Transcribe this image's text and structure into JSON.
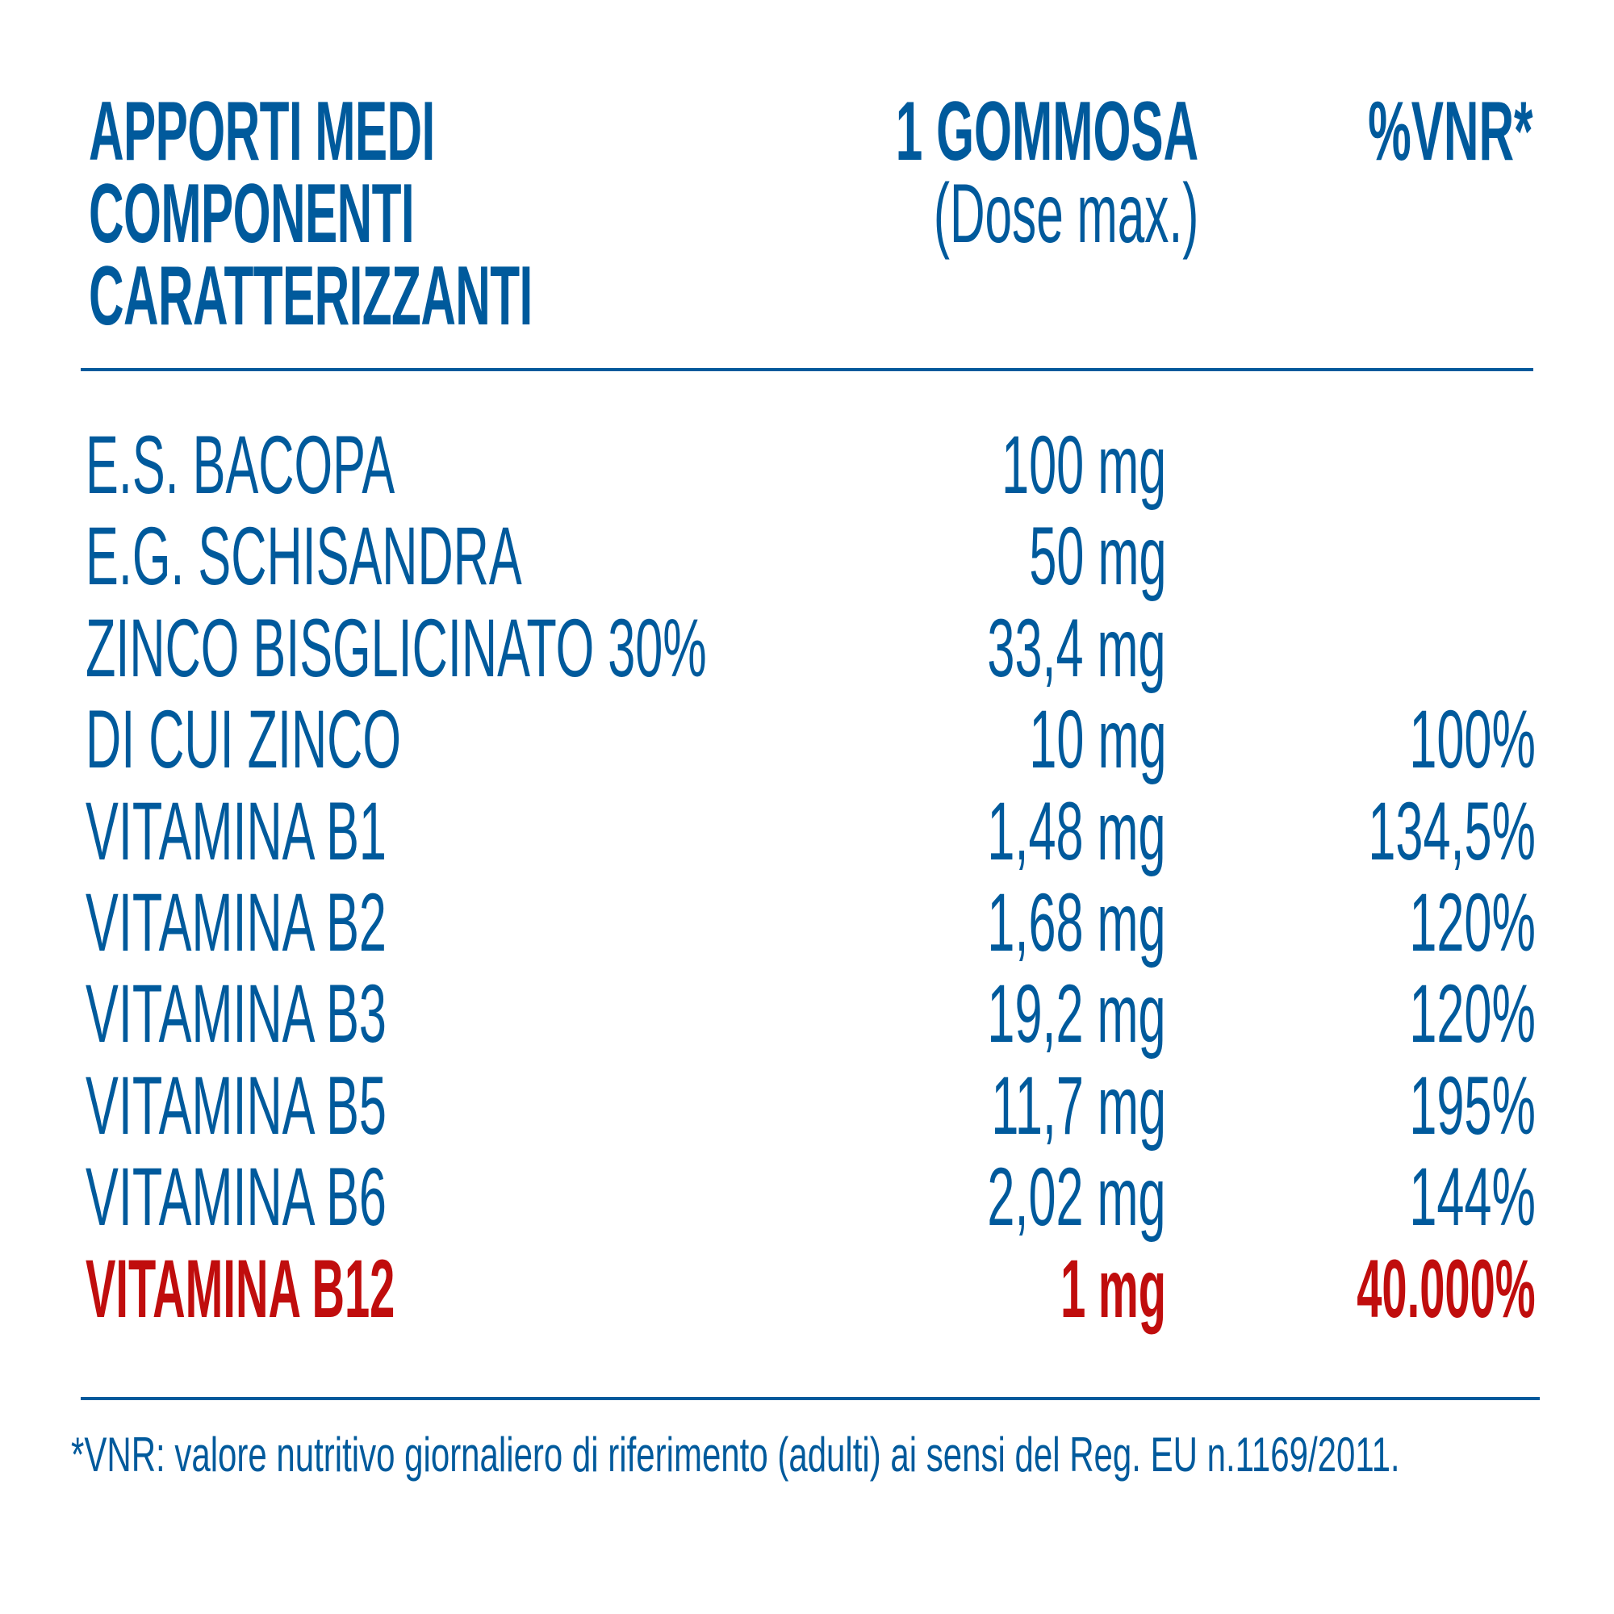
{
  "header": {
    "component_label_lines": [
      "APPORTI MEDI",
      "COMPONENTI",
      "CARATTERIZZANTI"
    ],
    "dose_label": "1 GOMMOSA",
    "dose_sublabel": "(Dose max.)",
    "vnr_label": "%VNR*"
  },
  "rows": [
    {
      "name": "E.S. BACOPA",
      "amount": "100 mg",
      "vnr": ""
    },
    {
      "name": "E.G. SCHISANDRA",
      "amount": "50 mg",
      "vnr": ""
    },
    {
      "name": "ZINCO BISGLICINATO 30%",
      "amount": "33,4 mg",
      "vnr": ""
    },
    {
      "name": "DI CUI ZINCO",
      "amount": "10 mg",
      "vnr": "100%"
    },
    {
      "name": "VITAMINA B1",
      "amount": "1,48 mg",
      "vnr": "134,5%"
    },
    {
      "name": "VITAMINA B2",
      "amount": "1,68 mg",
      "vnr": "120%"
    },
    {
      "name": "VITAMINA B3",
      "amount": "19,2 mg",
      "vnr": "120%"
    },
    {
      "name": "VITAMINA B5",
      "amount": "11,7 mg",
      "vnr": "195%"
    },
    {
      "name": "VITAMINA B6",
      "amount": "2,02 mg",
      "vnr": "144%"
    },
    {
      "name": "VITAMINA B12",
      "amount": "1 mg",
      "vnr": "40.000%",
      "highlight": true
    }
  ],
  "footnote": "*VNR: valore nutritivo giornaliero di riferimento (adulti) ai sensi del Reg. EU n.1169/2011.",
  "colors": {
    "primary_blue": "#005a9c",
    "highlight_red": "#c00d0d",
    "background": "#ffffff"
  }
}
